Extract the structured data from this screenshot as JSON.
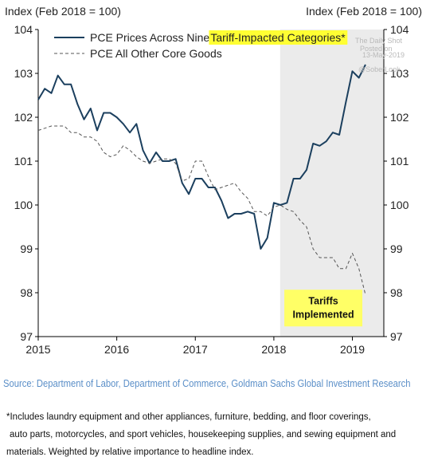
{
  "chart_data": {
    "type": "line",
    "left_axis_title": "Index (Feb 2018 = 100)",
    "right_axis_title": "Index (Feb 2018 = 100)",
    "ylim": [
      97,
      104
    ],
    "y_ticks": [
      "97",
      "98",
      "99",
      "100",
      "101",
      "102",
      "103",
      "104"
    ],
    "xlim": [
      2015,
      2019.4
    ],
    "x_ticks": [
      "2015",
      "2016",
      "2017",
      "2018",
      "2019"
    ],
    "grid": false,
    "legend_position": "top-left",
    "shaded_region": {
      "from": 2018.08,
      "to": 2019.4,
      "color": "#ebebeb"
    },
    "series": [
      {
        "name": "PCE Prices Across Nine",
        "name_highlight": "Tariff-Impacted Categories*",
        "color": "#1b3f5e",
        "style": "solid",
        "x": [
          2015.0,
          2015.083,
          2015.167,
          2015.25,
          2015.333,
          2015.417,
          2015.5,
          2015.583,
          2015.667,
          2015.75,
          2015.833,
          2015.917,
          2016.0,
          2016.083,
          2016.167,
          2016.25,
          2016.333,
          2016.417,
          2016.5,
          2016.583,
          2016.667,
          2016.75,
          2016.833,
          2016.917,
          2017.0,
          2017.083,
          2017.167,
          2017.25,
          2017.333,
          2017.417,
          2017.5,
          2017.583,
          2017.667,
          2017.75,
          2017.833,
          2017.917,
          2018.0,
          2018.083,
          2018.167,
          2018.25,
          2018.333,
          2018.417,
          2018.5,
          2018.583,
          2018.667,
          2018.75,
          2018.833,
          2018.917,
          2019.0,
          2019.083,
          2019.167
        ],
        "values": [
          102.4,
          102.65,
          102.55,
          102.95,
          102.75,
          102.75,
          102.3,
          101.95,
          102.2,
          101.7,
          102.1,
          102.1,
          102.0,
          101.85,
          101.65,
          101.85,
          101.25,
          100.95,
          101.2,
          101.0,
          101.0,
          101.05,
          100.5,
          100.25,
          100.6,
          100.6,
          100.4,
          100.4,
          100.1,
          99.7,
          99.8,
          99.8,
          99.85,
          99.8,
          99.0,
          99.25,
          100.05,
          100.0,
          100.05,
          100.6,
          100.6,
          100.8,
          101.4,
          101.35,
          101.45,
          101.65,
          101.6,
          102.35,
          103.05,
          102.9,
          103.2
        ]
      },
      {
        "name": "PCE All Other Core Goods",
        "color": "#555555",
        "style": "dashed",
        "x": [
          2015.0,
          2015.083,
          2015.167,
          2015.25,
          2015.333,
          2015.417,
          2015.5,
          2015.583,
          2015.667,
          2015.75,
          2015.833,
          2015.917,
          2016.0,
          2016.083,
          2016.167,
          2016.25,
          2016.333,
          2016.417,
          2016.5,
          2016.583,
          2016.667,
          2016.75,
          2016.833,
          2016.917,
          2017.0,
          2017.083,
          2017.167,
          2017.25,
          2017.333,
          2017.417,
          2017.5,
          2017.583,
          2017.667,
          2017.75,
          2017.833,
          2017.917,
          2018.0,
          2018.083,
          2018.167,
          2018.25,
          2018.333,
          2018.417,
          2018.5,
          2018.583,
          2018.667,
          2018.75,
          2018.833,
          2018.917,
          2019.0,
          2019.083,
          2019.167
        ],
        "values": [
          101.7,
          101.75,
          101.8,
          101.8,
          101.8,
          101.65,
          101.65,
          101.55,
          101.55,
          101.45,
          101.2,
          101.1,
          101.15,
          101.35,
          101.25,
          101.1,
          101.0,
          100.95,
          101.0,
          101.05,
          101.05,
          100.95,
          100.55,
          100.6,
          101.0,
          101.0,
          100.65,
          100.35,
          100.4,
          100.45,
          100.5,
          100.3,
          100.15,
          99.85,
          99.85,
          99.75,
          99.95,
          100.0,
          99.9,
          99.85,
          99.65,
          99.5,
          99.0,
          98.8,
          98.8,
          98.8,
          98.55,
          98.55,
          98.9,
          98.55,
          97.95
        ]
      }
    ],
    "annotation": {
      "text_line1": "Tariffs",
      "text_line2": "Implemented",
      "background": "#ffff66",
      "x": 2018.63,
      "y": 97.65
    }
  },
  "watermark": {
    "line1": "Posted on",
    "line2": "The Daily Shot",
    "line3": "13-May-2019",
    "line4": "@SoberLook"
  },
  "source": "Source: Department of Labor, Department of Commerce, Goldman Sachs Global Investment Research",
  "footnote": {
    "line1": "*Includes laundry equipment and other appliances, furniture, bedding, and floor coverings,",
    "line2": "auto parts, motorcycles, and sport vehicles, housekeeping supplies, and sewing equipment and",
    "line3": "materials. Weighted by relative importance to headline index."
  }
}
